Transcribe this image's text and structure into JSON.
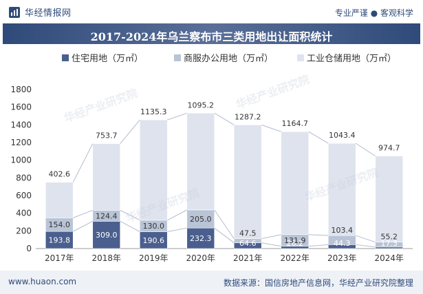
{
  "header": {
    "brand": "华经情报网",
    "slogan": "专业严谨 ● 客观科学",
    "title": "2017-2024年乌兰察布市三类用地出让面积统计"
  },
  "colors": {
    "residential": "#4a5f8e",
    "commercial": "#b9c4d6",
    "industrial": "#dfe3ee",
    "accent": "#2f4a7a"
  },
  "chart_data": {
    "type": "bar",
    "stacked": true,
    "categories": [
      "2017年",
      "2018年",
      "2019年",
      "2020年",
      "2021年",
      "2022年",
      "2023年",
      "2024年"
    ],
    "series": [
      {
        "name": "住宅用地（万㎡）",
        "values": [
          193.8,
          309.0,
          190.6,
          232.3,
          64.6,
          26.2,
          44.3,
          17.3
        ]
      },
      {
        "name": "商服办公用地（万㎡）",
        "values": [
          154.0,
          124.4,
          130.0,
          205.0,
          47.5,
          131.9,
          103.4,
          55.2
        ]
      },
      {
        "name": "工业仓储用地（万㎡）",
        "values": [
          402.6,
          753.7,
          1135.3,
          1095.2,
          1287.2,
          1164.7,
          1043.4,
          974.7
        ]
      }
    ],
    "labels": [
      [
        "193.8",
        "309.0",
        "190.6",
        "232.3",
        "64.6",
        "26.2",
        "44.3",
        "17.3"
      ],
      [
        "154.0",
        "124.4",
        "130.0",
        "205.0",
        "47.5",
        "131.9",
        "103.4",
        "55.2"
      ],
      [
        "402.6",
        "753.7",
        "1135.3",
        "1095.2",
        "1287.2",
        "1164.7",
        "1043.4",
        "974.7"
      ]
    ],
    "yticks": [
      "0",
      "200",
      "400",
      "600",
      "800",
      "1000",
      "1200",
      "1400",
      "1600",
      "1800"
    ],
    "ylim": [
      0,
      1800
    ]
  },
  "footer": {
    "website": "www.huaon.com",
    "source": "数据来源：国信房地产信息网，华经产业研究院整理"
  },
  "watermark": "华经产业研究院"
}
